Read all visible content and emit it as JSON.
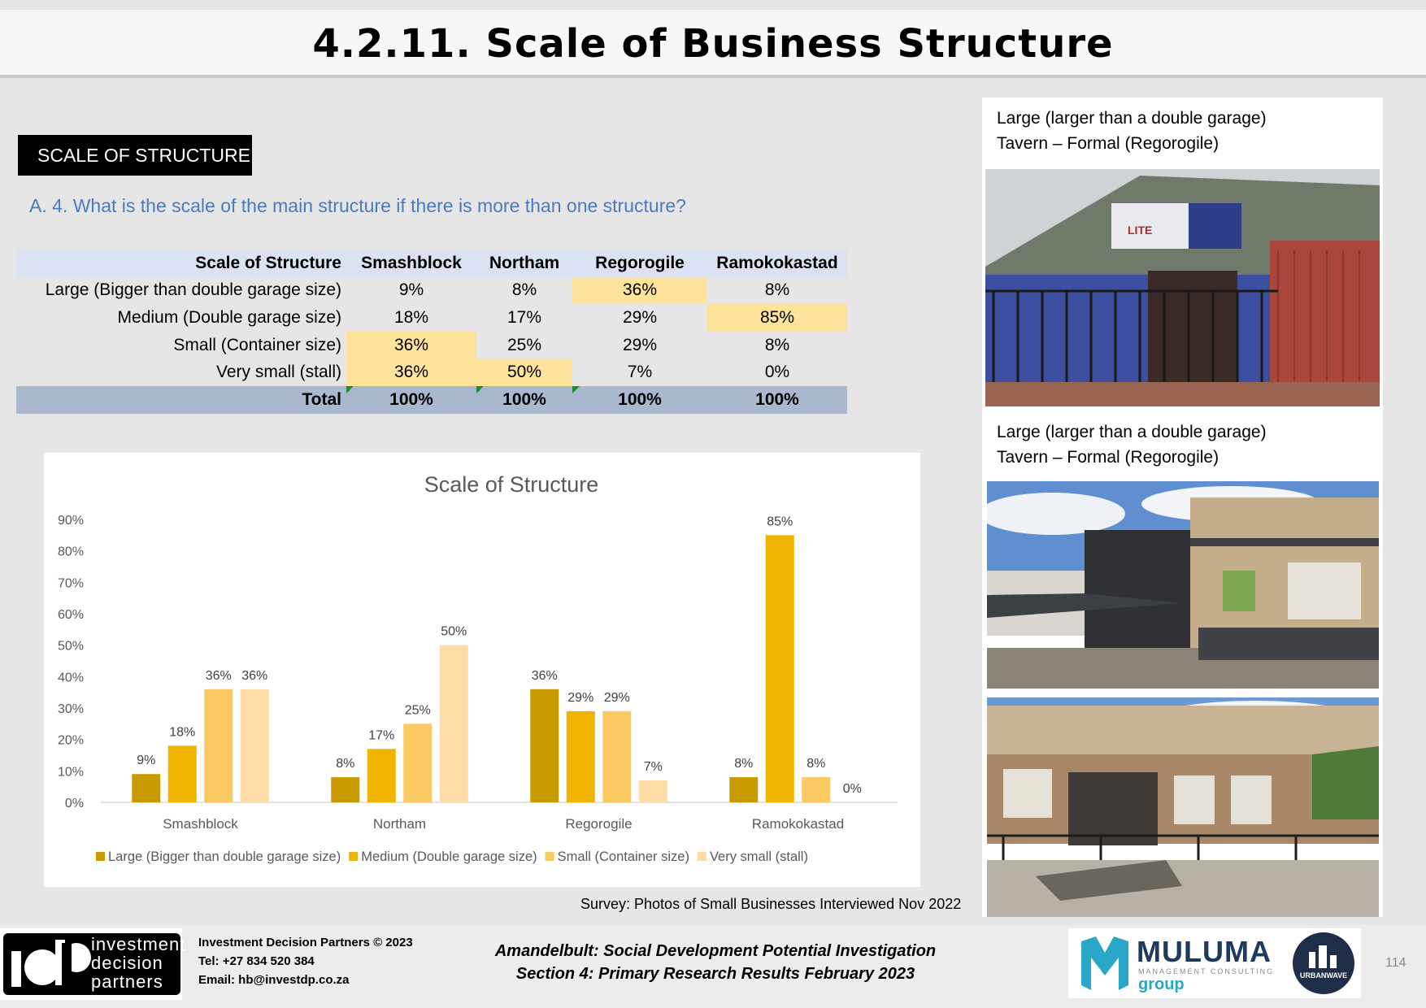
{
  "header": {
    "title": "4.2.11.  Scale of Business Structure"
  },
  "section_label": "SCALE OF STRUCTURE",
  "question": "A. 4. What is the scale of the main structure if there is more than one structure?",
  "table": {
    "headers": [
      "Scale of Structure",
      "Smashblock",
      "Northam",
      "Regorogile",
      "Ramokokastad"
    ],
    "rows": [
      [
        "Large (Bigger than double garage size)",
        "9%",
        "8%",
        "36%",
        "8%"
      ],
      [
        "Medium (Double garage size)",
        "18%",
        "17%",
        "29%",
        "85%"
      ],
      [
        "Small (Container size)",
        "36%",
        "25%",
        "29%",
        "8%"
      ],
      [
        "Very small (stall)",
        "36%",
        "50%",
        "7%",
        "0%"
      ]
    ],
    "total": [
      "Total",
      "100%",
      "100%",
      "100%",
      "100%"
    ],
    "highlight_color": "#fde49a"
  },
  "chart_data": {
    "type": "bar",
    "title": "Scale of Structure",
    "categories": [
      "Smashblock",
      "Northam",
      "Regorogile",
      "Ramokokastad"
    ],
    "series": [
      {
        "name": "Large (Bigger than double garage size)",
        "values": [
          9,
          8,
          36,
          8
        ],
        "labels": [
          "9%",
          "8%",
          "36%",
          "8%"
        ],
        "color": "#c99a00"
      },
      {
        "name": "Medium (Double garage size)",
        "values": [
          18,
          17,
          29,
          85
        ],
        "labels": [
          "18%",
          "17%",
          "29%",
          "85%"
        ],
        "color": "#efb300"
      },
      {
        "name": "Small (Container size)",
        "values": [
          36,
          25,
          29,
          8
        ],
        "labels": [
          "36%",
          "25%",
          "29%",
          "8%"
        ],
        "color": "#fbc962"
      },
      {
        "name": "Very small (stall)",
        "values": [
          36,
          50,
          7,
          0
        ],
        "labels": [
          "36%",
          "50%",
          "7%",
          "0%"
        ],
        "color": "#fddca8"
      }
    ],
    "yticks": [
      "0%",
      "10%",
      "20%",
      "30%",
      "40%",
      "50%",
      "60%",
      "70%",
      "80%",
      "90%"
    ],
    "ylim": [
      0,
      90
    ],
    "grid": false,
    "legend": "bottom"
  },
  "source": "Survey: Photos of  Small Businesses Interviewed Nov 2022",
  "photos": {
    "caption1_line1": "Large (larger than a double garage)",
    "caption1_line2": "Tavern – Formal (Regorogile)",
    "caption2_line1": "Large (larger than a double garage)",
    "caption2_line2": "Tavern – Formal (Regorogile)",
    "sign_text": "LITE"
  },
  "footer": {
    "logo_words": [
      "investment",
      "decision",
      "partners"
    ],
    "company": "Investment Decision Partners © 2023",
    "tel": "Tel: +27 834 520 384",
    "email": "Email: hb@investdp.co.za",
    "title_line1": "Amandelbult: Social Development Potential Investigation",
    "title_line2": "Section 4: Primary Research Results February 2023",
    "muluma": "MULUMA",
    "muluma_sub": "MANAGEMENT CONSULTING",
    "muluma_group": "group",
    "urbanwave": "URBANWAVE",
    "page_number": "114"
  }
}
